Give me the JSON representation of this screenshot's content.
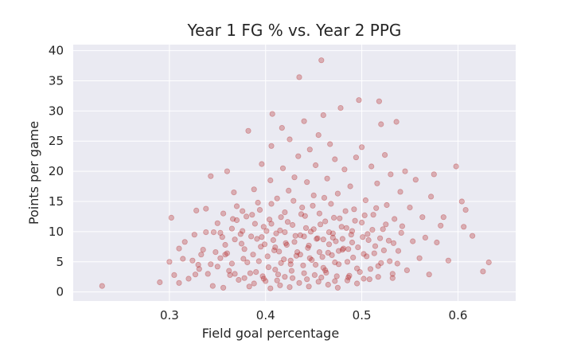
{
  "chart_data": {
    "type": "scatter",
    "title": "Year 1 FG % vs. Year 2 PPG",
    "xlabel": "Field goal percentage",
    "ylabel": "Points per game",
    "xlim": [
      0.2,
      0.66
    ],
    "ylim": [
      -1.5,
      41
    ],
    "xticks": [
      "0.3",
      "0.4",
      "0.5",
      "0.6"
    ],
    "yticks": [
      "0",
      "5",
      "10",
      "15",
      "20",
      "25",
      "30",
      "35",
      "40"
    ],
    "grid": true,
    "point_color": "#b22222",
    "background_color": "#eaeaf2",
    "points": [
      [
        0.23,
        1.0
      ],
      [
        0.29,
        1.6
      ],
      [
        0.3,
        5.0
      ],
      [
        0.302,
        12.3
      ],
      [
        0.305,
        2.8
      ],
      [
        0.31,
        1.5
      ],
      [
        0.31,
        7.2
      ],
      [
        0.314,
        5.5
      ],
      [
        0.316,
        8.3
      ],
      [
        0.32,
        2.2
      ],
      [
        0.324,
        5.2
      ],
      [
        0.326,
        9.5
      ],
      [
        0.327,
        2.9
      ],
      [
        0.328,
        13.5
      ],
      [
        0.33,
        4.5
      ],
      [
        0.335,
        7.0
      ],
      [
        0.338,
        13.8
      ],
      [
        0.34,
        3.0
      ],
      [
        0.343,
        19.2
      ],
      [
        0.345,
        1.0
      ],
      [
        0.35,
        11.4
      ],
      [
        0.35,
        4.2
      ],
      [
        0.353,
        9.8
      ],
      [
        0.356,
        0.7
      ],
      [
        0.358,
        6.2
      ],
      [
        0.36,
        20.0
      ],
      [
        0.362,
        3.5
      ],
      [
        0.365,
        10.5
      ],
      [
        0.367,
        16.5
      ],
      [
        0.37,
        14.2
      ],
      [
        0.372,
        2.0
      ],
      [
        0.375,
        8.0
      ],
      [
        0.377,
        5.5
      ],
      [
        0.38,
        12.5
      ],
      [
        0.382,
        26.7
      ],
      [
        0.383,
        0.9
      ],
      [
        0.385,
        9.2
      ],
      [
        0.388,
        17.0
      ],
      [
        0.39,
        3.3
      ],
      [
        0.392,
        14.8
      ],
      [
        0.395,
        7.5
      ],
      [
        0.396,
        21.2
      ],
      [
        0.398,
        10.8
      ],
      [
        0.4,
        1.8
      ],
      [
        0.402,
        5.9
      ],
      [
        0.404,
        12.0
      ],
      [
        0.405,
        18.5
      ],
      [
        0.406,
        24.2
      ],
      [
        0.407,
        29.5
      ],
      [
        0.408,
        8.6
      ],
      [
        0.41,
        3.7
      ],
      [
        0.412,
        15.5
      ],
      [
        0.414,
        6.7
      ],
      [
        0.415,
        10.2
      ],
      [
        0.417,
        27.2
      ],
      [
        0.418,
        20.5
      ],
      [
        0.42,
        2.5
      ],
      [
        0.42,
        13.2
      ],
      [
        0.422,
        7.8
      ],
      [
        0.424,
        16.8
      ],
      [
        0.425,
        25.3
      ],
      [
        0.426,
        4.6
      ],
      [
        0.428,
        11.1
      ],
      [
        0.43,
        19.0
      ],
      [
        0.432,
        6.0
      ],
      [
        0.434,
        22.5
      ],
      [
        0.435,
        35.6
      ],
      [
        0.436,
        9.4
      ],
      [
        0.438,
        14.0
      ],
      [
        0.44,
        3.1
      ],
      [
        0.44,
        28.3
      ],
      [
        0.441,
        12.6
      ],
      [
        0.443,
        18.2
      ],
      [
        0.444,
        7.3
      ],
      [
        0.446,
        23.6
      ],
      [
        0.447,
        10.0
      ],
      [
        0.448,
        5.3
      ],
      [
        0.45,
        16.0
      ],
      [
        0.452,
        21.0
      ],
      [
        0.453,
        8.8
      ],
      [
        0.455,
        26.0
      ],
      [
        0.456,
        13.0
      ],
      [
        0.458,
        38.4
      ],
      [
        0.46,
        4.0
      ],
      [
        0.46,
        29.3
      ],
      [
        0.462,
        11.7
      ],
      [
        0.464,
        18.8
      ],
      [
        0.465,
        6.5
      ],
      [
        0.467,
        24.5
      ],
      [
        0.468,
        14.6
      ],
      [
        0.47,
        9.0
      ],
      [
        0.472,
        22.0
      ],
      [
        0.474,
        2.6
      ],
      [
        0.475,
        16.3
      ],
      [
        0.477,
        12.2
      ],
      [
        0.478,
        30.5
      ],
      [
        0.48,
        7.0
      ],
      [
        0.482,
        20.3
      ],
      [
        0.484,
        10.6
      ],
      [
        0.485,
        5.0
      ],
      [
        0.488,
        17.5
      ],
      [
        0.49,
        8.2
      ],
      [
        0.492,
        13.7
      ],
      [
        0.494,
        22.3
      ],
      [
        0.495,
        3.9
      ],
      [
        0.497,
        31.8
      ],
      [
        0.5,
        11.5
      ],
      [
        0.5,
        24.0
      ],
      [
        0.502,
        6.3
      ],
      [
        0.504,
        15.2
      ],
      [
        0.506,
        9.6
      ],
      [
        0.508,
        2.1
      ],
      [
        0.51,
        20.8
      ],
      [
        0.512,
        12.8
      ],
      [
        0.514,
        7.6
      ],
      [
        0.516,
        18.0
      ],
      [
        0.518,
        31.6
      ],
      [
        0.52,
        4.8
      ],
      [
        0.52,
        27.8
      ],
      [
        0.522,
        10.4
      ],
      [
        0.524,
        22.7
      ],
      [
        0.526,
        14.4
      ],
      [
        0.528,
        8.5
      ],
      [
        0.53,
        19.5
      ],
      [
        0.532,
        2.3
      ],
      [
        0.534,
        12.1
      ],
      [
        0.536,
        28.2
      ],
      [
        0.538,
        6.8
      ],
      [
        0.54,
        16.6
      ],
      [
        0.542,
        10.9
      ],
      [
        0.545,
        20.0
      ],
      [
        0.547,
        3.6
      ],
      [
        0.55,
        14.0
      ],
      [
        0.553,
        8.4
      ],
      [
        0.556,
        18.6
      ],
      [
        0.56,
        5.6
      ],
      [
        0.563,
        12.4
      ],
      [
        0.566,
        9.0
      ],
      [
        0.57,
        2.9
      ],
      [
        0.572,
        15.8
      ],
      [
        0.575,
        19.5
      ],
      [
        0.578,
        8.2
      ],
      [
        0.582,
        11.0
      ],
      [
        0.585,
        12.4
      ],
      [
        0.59,
        5.2
      ],
      [
        0.598,
        20.8
      ],
      [
        0.604,
        15.0
      ],
      [
        0.606,
        10.8
      ],
      [
        0.608,
        13.6
      ],
      [
        0.615,
        9.3
      ],
      [
        0.626,
        3.4
      ],
      [
        0.632,
        4.9
      ],
      [
        0.355,
        9.1
      ],
      [
        0.36,
        6.4
      ],
      [
        0.365,
        4.7
      ],
      [
        0.37,
        11.9
      ],
      [
        0.374,
        9.6
      ],
      [
        0.378,
        7.1
      ],
      [
        0.381,
        4.9
      ],
      [
        0.384,
        3.1
      ],
      [
        0.387,
        6.2
      ],
      [
        0.389,
        11.3
      ],
      [
        0.391,
        8.8
      ],
      [
        0.393,
        5.1
      ],
      [
        0.394,
        13.6
      ],
      [
        0.397,
        2.6
      ],
      [
        0.399,
        7.9
      ],
      [
        0.401,
        10.1
      ],
      [
        0.403,
        4.1
      ],
      [
        0.406,
        14.6
      ],
      [
        0.409,
        6.9
      ],
      [
        0.411,
        9.7
      ],
      [
        0.413,
        2.9
      ],
      [
        0.416,
        12.4
      ],
      [
        0.419,
        5.4
      ],
      [
        0.421,
        8.1
      ],
      [
        0.423,
        11.6
      ],
      [
        0.427,
        3.5
      ],
      [
        0.429,
        15.1
      ],
      [
        0.431,
        9.3
      ],
      [
        0.433,
        6.6
      ],
      [
        0.437,
        12.9
      ],
      [
        0.439,
        4.4
      ],
      [
        0.442,
        10.6
      ],
      [
        0.445,
        7.7
      ],
      [
        0.449,
        14.3
      ],
      [
        0.451,
        2.8
      ],
      [
        0.454,
        8.9
      ],
      [
        0.457,
        11.2
      ],
      [
        0.459,
        5.8
      ],
      [
        0.461,
        15.6
      ],
      [
        0.463,
        3.2
      ],
      [
        0.466,
        9.9
      ],
      [
        0.469,
        6.1
      ],
      [
        0.471,
        12.3
      ],
      [
        0.473,
        8.4
      ],
      [
        0.476,
        4.6
      ],
      [
        0.479,
        10.8
      ],
      [
        0.481,
        7.2
      ],
      [
        0.483,
        13.4
      ],
      [
        0.486,
        2.4
      ],
      [
        0.489,
        9.5
      ],
      [
        0.491,
        5.7
      ],
      [
        0.493,
        11.8
      ],
      [
        0.496,
        7.4
      ],
      [
        0.498,
        3.3
      ],
      [
        0.501,
        9.1
      ],
      [
        0.503,
        12.7
      ],
      [
        0.505,
        5.9
      ],
      [
        0.507,
        8.6
      ],
      [
        0.509,
        3.8
      ],
      [
        0.511,
        10.3
      ],
      [
        0.513,
        6.4
      ],
      [
        0.515,
        13.9
      ],
      [
        0.517,
        4.3
      ],
      [
        0.519,
        8.9
      ],
      [
        0.523,
        6.9
      ],
      [
        0.525,
        11.2
      ],
      [
        0.529,
        5.1
      ],
      [
        0.533,
        8.1
      ],
      [
        0.537,
        4.7
      ],
      [
        0.541,
        9.8
      ],
      [
        0.405,
        0.6
      ],
      [
        0.415,
        1.1
      ],
      [
        0.425,
        0.8
      ],
      [
        0.435,
        1.5
      ],
      [
        0.445,
        0.9
      ],
      [
        0.455,
        1.7
      ],
      [
        0.465,
        1.2
      ],
      [
        0.475,
        0.7
      ],
      [
        0.485,
        1.9
      ],
      [
        0.495,
        1.4
      ],
      [
        0.398,
        2.2
      ],
      [
        0.412,
        1.9
      ],
      [
        0.428,
        2.3
      ],
      [
        0.443,
        2.1
      ],
      [
        0.458,
        2.4
      ],
      [
        0.472,
        1.8
      ],
      [
        0.487,
        2.7
      ],
      [
        0.502,
        2.2
      ],
      [
        0.517,
        2.5
      ],
      [
        0.532,
        3.0
      ],
      [
        0.42,
        9.9
      ],
      [
        0.43,
        8.3
      ],
      [
        0.44,
        9.2
      ],
      [
        0.45,
        10.4
      ],
      [
        0.46,
        8.7
      ],
      [
        0.47,
        9.7
      ],
      [
        0.48,
        8.8
      ],
      [
        0.49,
        10.1
      ],
      [
        0.41,
        7.4
      ],
      [
        0.436,
        6.2
      ],
      [
        0.446,
        5.6
      ],
      [
        0.456,
        6.6
      ],
      [
        0.466,
        7.9
      ],
      [
        0.476,
        6.8
      ],
      [
        0.486,
        7.1
      ],
      [
        0.426,
        5.2
      ],
      [
        0.416,
        4.8
      ],
      [
        0.452,
        4.5
      ],
      [
        0.462,
        3.6
      ],
      [
        0.472,
        4.9
      ],
      [
        0.368,
        8.7
      ],
      [
        0.376,
        10.1
      ],
      [
        0.386,
        12.8
      ],
      [
        0.396,
        9.1
      ],
      [
        0.406,
        11.3
      ],
      [
        0.376,
        13.4
      ],
      [
        0.366,
        12.1
      ],
      [
        0.356,
        13.0
      ],
      [
        0.346,
        9.9
      ],
      [
        0.348,
        6.6
      ],
      [
        0.358,
        7.8
      ],
      [
        0.368,
        3.0
      ],
      [
        0.378,
        2.3
      ],
      [
        0.388,
        1.4
      ],
      [
        0.363,
        2.8
      ],
      [
        0.353,
        5.6
      ],
      [
        0.343,
        4.6
      ],
      [
        0.333,
        6.2
      ],
      [
        0.338,
        9.9
      ],
      [
        0.331,
        3.8
      ]
    ]
  }
}
